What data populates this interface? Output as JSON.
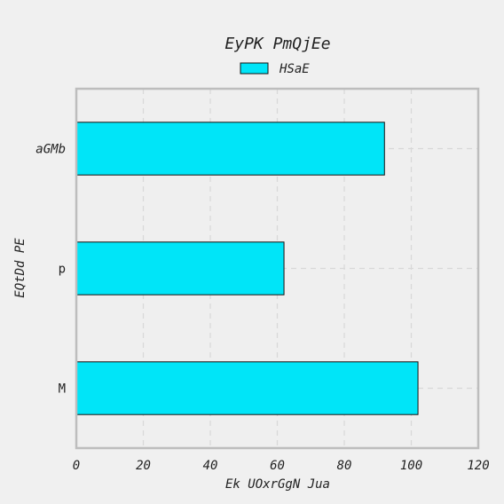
{
  "chart_data": {
    "type": "bar",
    "orientation": "horizontal",
    "title": "EyPK PmQjEe",
    "xlabel": "Ek UOxrGgN Jua",
    "ylabel": "EQtDd PE",
    "categories": [
      "aGMb",
      "p",
      "M"
    ],
    "series": [
      {
        "name": "HSaE",
        "values": [
          92,
          62,
          102
        ],
        "color": "#00e5f8"
      }
    ],
    "xlim": [
      0,
      120
    ],
    "xticks": [
      0,
      20,
      40,
      60,
      80,
      100,
      120
    ],
    "grid": true,
    "legend_position": "top-center",
    "background": "#efefef"
  }
}
